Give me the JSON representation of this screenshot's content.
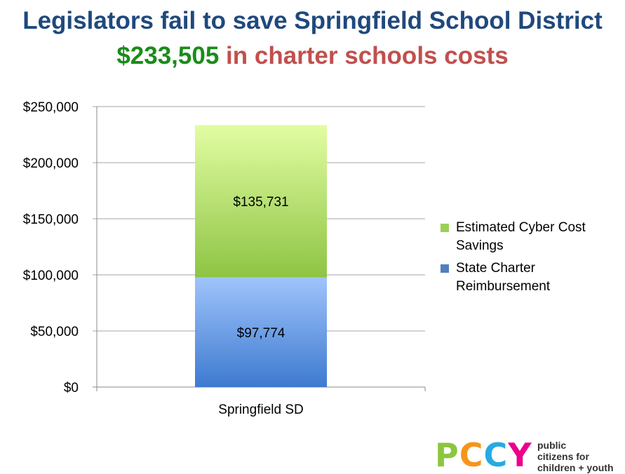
{
  "title": {
    "line1": "Legislators fail to save Springfield School District",
    "line2_amount": "$233,505",
    "line2_rest": " in charter schools costs"
  },
  "colors": {
    "title_blue": "#1f497d",
    "amount_green": "#1a8c1a",
    "rest_red": "#c0504d",
    "series_green": "#9bd054",
    "series_blue": "#4f81bd"
  },
  "chart_data": {
    "type": "bar",
    "stacked": true,
    "categories": [
      "Springfield SD"
    ],
    "series": [
      {
        "name": "State Charter Reimbursement",
        "values": [
          97774
        ],
        "label": "$97,774"
      },
      {
        "name": "Estimated Cyber Cost Savings",
        "values": [
          135731
        ],
        "label": "$135,731"
      }
    ],
    "ylim": [
      0,
      250000
    ],
    "yticks": [
      "$0",
      "$50,000",
      "$100,000",
      "$150,000",
      "$200,000",
      "$250,000"
    ],
    "grid": true,
    "legend": "right"
  },
  "legend": {
    "item1": "Estimated Cyber Cost Savings",
    "item2": "State Charter Reimbursement"
  },
  "logo": {
    "letters": "PCCY",
    "text_line1": "public",
    "text_line2": "citizens for",
    "text_line3": "children + youth"
  }
}
